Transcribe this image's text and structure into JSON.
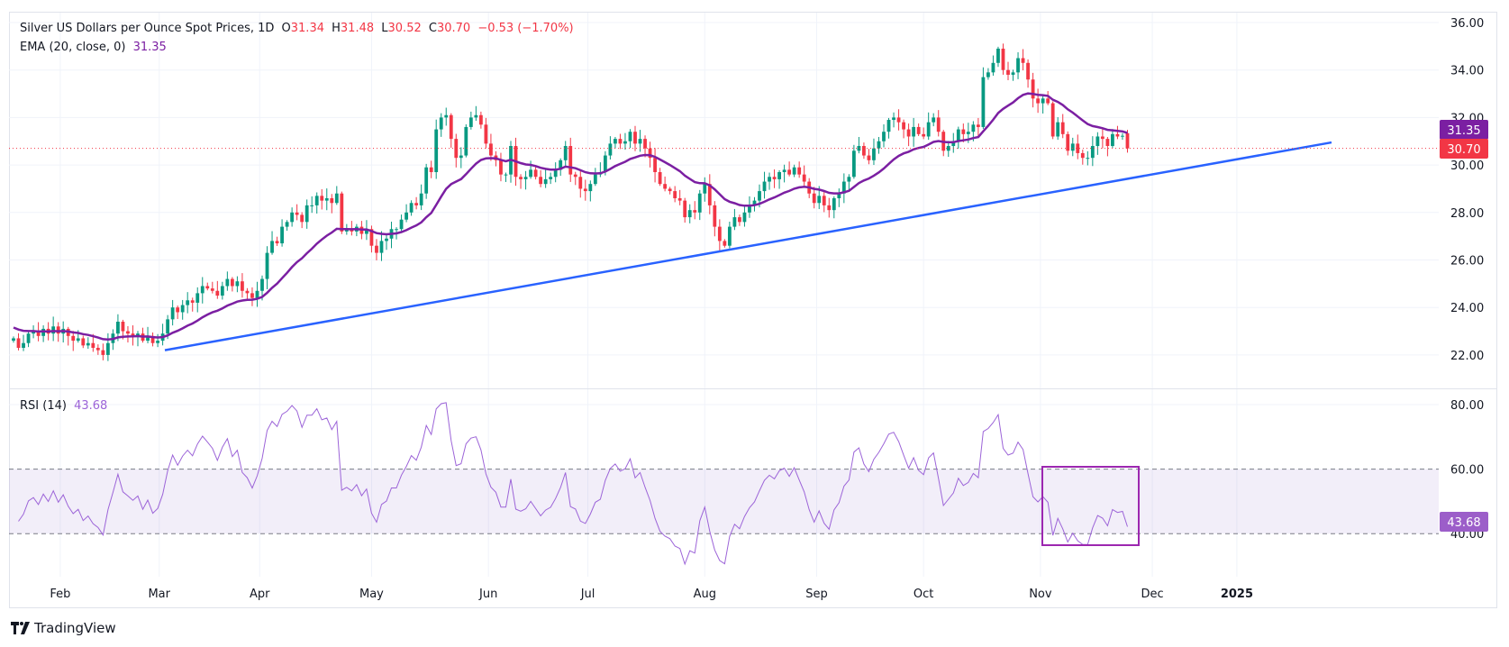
{
  "header": {
    "title": "Silver US Dollars per Ounce Spot Prices, 1D",
    "o_label": "O",
    "o": "31.34",
    "h_label": "H",
    "h": "31.48",
    "l_label": "L",
    "l": "30.52",
    "c_label": "C",
    "c": "30.70",
    "change": "−0.53 (−1.70%)",
    "ema_label": "EMA (20, close, 0)",
    "ema_value": "31.35",
    "rsi_label": "RSI (14)",
    "rsi_value": "43.68"
  },
  "branding": {
    "logo": "TradingView"
  },
  "colors": {
    "up": "#089981",
    "down": "#f23645",
    "ema": "#7b1fa2",
    "trendline": "#2962ff",
    "rsi": "#9c64d8",
    "rsi_band": "#7e57c2",
    "last_price": "#f23645",
    "highlight_box": "#9c27b0"
  },
  "chart_data": [
    {
      "type": "candlestick",
      "title": "Silver US Dollars per Ounce Spot Prices, 1D",
      "ylim": [
        21,
        36.5
      ],
      "y_ticks": [
        "36.00",
        "34.00",
        "32.00",
        "30.00",
        "28.00",
        "26.00",
        "24.00",
        "22.00"
      ],
      "x_tick_labels": [
        "Feb",
        "Mar",
        "Apr",
        "May",
        "Jun",
        "Jul",
        "Aug",
        "Sep",
        "Oct",
        "Nov",
        "Dec",
        "2025"
      ],
      "grid": true,
      "closes": [
        22.7,
        22.3,
        22.5,
        22.9,
        23.0,
        22.8,
        23.1,
        22.9,
        23.2,
        22.9,
        23.1,
        22.8,
        22.6,
        22.7,
        22.4,
        22.5,
        22.3,
        22.2,
        22.0,
        22.5,
        22.9,
        23.4,
        23.0,
        22.9,
        22.8,
        22.9,
        22.6,
        22.8,
        22.5,
        22.6,
        22.9,
        23.5,
        24.0,
        23.8,
        24.1,
        24.3,
        24.2,
        24.6,
        24.9,
        24.8,
        24.7,
        24.5,
        24.9,
        25.2,
        24.9,
        25.1,
        24.7,
        24.6,
        24.4,
        24.7,
        25.2,
        26.3,
        26.8,
        26.7,
        27.4,
        27.6,
        28.0,
        27.9,
        27.6,
        28.3,
        28.3,
        28.7,
        28.5,
        28.6,
        28.4,
        28.8,
        27.2,
        27.3,
        27.2,
        27.4,
        27.1,
        27.3,
        26.6,
        26.3,
        26.8,
        26.9,
        27.3,
        27.3,
        27.7,
        28.0,
        28.4,
        28.3,
        28.8,
        29.9,
        29.7,
        31.5,
        32.0,
        32.1,
        31.1,
        30.3,
        30.4,
        31.6,
        32.0,
        32.1,
        31.7,
        30.9,
        30.4,
        30.2,
        29.6,
        29.6,
        30.8,
        29.5,
        29.4,
        29.5,
        29.8,
        29.5,
        29.2,
        29.4,
        29.5,
        29.8,
        30.2,
        30.8,
        29.6,
        29.5,
        29.0,
        28.9,
        29.2,
        29.6,
        29.7,
        30.4,
        30.9,
        31.1,
        30.9,
        31.0,
        31.4,
        30.9,
        31.1,
        30.7,
        30.3,
        29.7,
        29.2,
        29.0,
        28.9,
        28.6,
        28.5,
        27.8,
        28.1,
        28.0,
        28.8,
        29.2,
        28.3,
        27.4,
        26.8,
        26.6,
        27.4,
        27.8,
        27.6,
        28.0,
        28.3,
        28.5,
        28.9,
        29.3,
        29.5,
        29.4,
        29.7,
        29.8,
        29.6,
        29.9,
        29.6,
        29.3,
        28.8,
        28.4,
        28.7,
        28.3,
        28.1,
        28.6,
        28.8,
        29.3,
        29.5,
        30.6,
        30.8,
        30.4,
        30.2,
        30.7,
        31.0,
        31.4,
        31.9,
        32.0,
        31.8,
        31.5,
        31.2,
        31.6,
        31.3,
        31.2,
        31.8,
        32.0,
        31.4,
        30.6,
        30.8,
        31.0,
        31.5,
        31.3,
        31.4,
        31.7,
        31.6,
        33.7,
        33.9,
        34.3,
        34.9,
        34.0,
        33.8,
        33.9,
        34.5,
        34.3,
        33.6,
        32.8,
        32.6,
        32.8,
        32.6,
        31.2,
        31.8,
        31.3,
        30.6,
        30.9,
        30.5,
        30.3,
        30.3,
        30.8,
        31.2,
        31.1,
        30.8,
        31.3,
        31.2,
        31.23,
        30.7
      ],
      "last_open": 31.34,
      "last_high": 31.48,
      "last_low": 30.52,
      "ema": {
        "period": 20,
        "last_value": "31.35"
      },
      "last_price_label": "30.70",
      "ema_price_label": "31.35",
      "trendline": {
        "start_price": 22.2,
        "through_price": 26.5,
        "end_price": 30.95
      }
    },
    {
      "type": "line",
      "title": "RSI (14)",
      "ylim": [
        25,
        85
      ],
      "y_ticks": [
        "80.00",
        "60.00",
        "40.00"
      ],
      "band": [
        40,
        60
      ],
      "period": 14,
      "last_value_label": "43.68",
      "highlight": "recent range box (Nov) spanning roughly 35–60"
    }
  ]
}
